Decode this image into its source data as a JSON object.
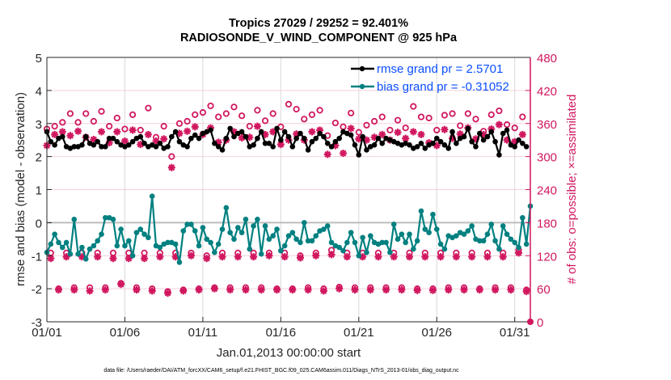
{
  "chart_data": {
    "type": "line",
    "title_line1": "Tropics 27029 / 29252 = 92.401%",
    "title_line2": "RADIOSONDE_V_WIND_COMPONENT @ 925 hPa",
    "xlabel": "Jan.01,2013 00:00:00 start",
    "ylabel": "rmse and bias (model - observation)",
    "ylabel_right": "# of obs: o=possible; ×=assimilated",
    "footnote": "data file: /Users/raeder/DAI/ATM_forcXX/CAM6_setup/f.e21.FHIST_BGC.f09_025.CAM6assim.011/Diags_NTrS_2013-01/obs_diag_output.nc",
    "xlim_days": [
      0,
      31
    ],
    "ylim": [
      -3,
      5
    ],
    "ylim_right": [
      0,
      480
    ],
    "x_ticks": [
      {
        "day": 0,
        "label": "01/01"
      },
      {
        "day": 5,
        "label": "01/06"
      },
      {
        "day": 10,
        "label": "01/11"
      },
      {
        "day": 15,
        "label": "01/16"
      },
      {
        "day": 20,
        "label": "01/21"
      },
      {
        "day": 25,
        "label": "01/26"
      },
      {
        "day": 30,
        "label": "01/31"
      }
    ],
    "y_ticks": [
      5,
      4,
      3,
      2,
      1,
      0,
      -1,
      -2,
      -3
    ],
    "y_ticks_right": [
      480,
      420,
      360,
      300,
      240,
      180,
      120,
      60,
      0
    ],
    "grid": true,
    "zero_line": 0,
    "legend_position": "top-right",
    "colors": {
      "rmse": "#000000",
      "bias": "#008080",
      "obs": "#d1175f",
      "legend_text": "#0a4fff",
      "zero_line": "#bdbdbd"
    },
    "time_step_days": 0.25,
    "series": [
      {
        "name": "rmse grand pr = 2.5701",
        "key": "rmse",
        "values": [
          2.75,
          2.45,
          2.35,
          2.55,
          2.6,
          2.3,
          2.25,
          2.3,
          2.3,
          2.35,
          2.6,
          2.4,
          2.35,
          2.45,
          2.3,
          2.3,
          2.55,
          2.55,
          2.45,
          2.35,
          2.3,
          2.35,
          2.45,
          2.55,
          2.6,
          2.4,
          2.3,
          2.35,
          2.3,
          2.4,
          2.25,
          2.3,
          2.6,
          2.75,
          2.45,
          2.35,
          2.3,
          2.55,
          2.65,
          2.55,
          2.7,
          2.75,
          2.8,
          2.4,
          2.3,
          2.2,
          2.55,
          2.85,
          2.6,
          2.7,
          2.75,
          2.6,
          2.3,
          2.35,
          2.55,
          2.75,
          2.4,
          2.4,
          2.3,
          2.85,
          2.5,
          2.75,
          2.6,
          2.3,
          2.55,
          2.7,
          2.55,
          2.2,
          2.45,
          2.55,
          2.7,
          2.6,
          2.4,
          2.3,
          2.45,
          2.55,
          2.75,
          2.7,
          2.65,
          2.35,
          2.05,
          2.6,
          2.2,
          2.3,
          2.35,
          2.55,
          2.4,
          2.55,
          2.5,
          2.45,
          2.4,
          2.35,
          2.4,
          2.35,
          2.25,
          2.3,
          2.4,
          2.25,
          2.35,
          2.4,
          2.55,
          2.45,
          2.35,
          2.25,
          2.75,
          2.4,
          2.55,
          2.6,
          2.85,
          2.45,
          2.3,
          2.7,
          2.5,
          2.6,
          2.75,
          2.45,
          2.05,
          2.7,
          2.8,
          2.35,
          2.3,
          2.5,
          2.4,
          2.3
        ]
      },
      {
        "name": "bias grand pr = -0.31052",
        "key": "bias",
        "values": [
          -0.9,
          -0.65,
          -0.35,
          -0.6,
          -0.75,
          -0.6,
          -0.95,
          0.1,
          -0.95,
          -0.75,
          -1.1,
          -0.8,
          -0.7,
          -0.55,
          -0.35,
          0.15,
          0.15,
          0.1,
          -0.7,
          -0.2,
          -0.7,
          -0.55,
          -1.0,
          -0.3,
          -0.2,
          -0.35,
          -0.45,
          0.8,
          -0.7,
          -0.75,
          -0.65,
          -0.6,
          -0.6,
          -0.65,
          -1.2,
          -0.25,
          -0.05,
          -0.05,
          -0.25,
          -0.7,
          -0.15,
          -0.5,
          -0.6,
          -0.9,
          -0.65,
          -0.2,
          0.45,
          -0.3,
          -0.5,
          -0.15,
          -0.3,
          0.1,
          -0.8,
          -0.1,
          0.1,
          -0.95,
          -0.1,
          -0.5,
          -0.4,
          -0.2,
          -0.85,
          -0.7,
          -0.4,
          -0.3,
          -0.5,
          -0.6,
          0.0,
          -0.55,
          -0.55,
          -0.4,
          -0.25,
          -0.2,
          -0.1,
          -0.6,
          -0.7,
          -0.75,
          -0.85,
          -0.6,
          -0.3,
          -0.6,
          -1.0,
          -0.45,
          -0.9,
          -0.4,
          -0.6,
          -0.65,
          -0.6,
          -0.6,
          -0.9,
          -0.05,
          -0.5,
          -0.35,
          -0.6,
          -0.35,
          -0.8,
          -0.55,
          0.35,
          -0.2,
          -0.3,
          0.25,
          -0.2,
          -0.65,
          -0.8,
          -0.4,
          -0.45,
          -0.4,
          -0.3,
          -0.35,
          -0.25,
          -0.1,
          -0.5,
          -0.55,
          -0.55,
          -0.35,
          -0.05,
          -0.55,
          -0.8,
          -0.1,
          -0.35,
          -0.5,
          -0.6,
          -0.75,
          0.15,
          -0.65,
          0.5
        ]
      },
      {
        "name": "possible obs count (o)",
        "key": "obs_possible",
        "pattern": "00Z and 12Z high, 06Z mid, 18Z low",
        "values": [
          350,
          125,
          355,
          60,
          362,
          125,
          378,
          62,
          362,
          125,
          378,
          62,
          364,
          125,
          382,
          62,
          355,
          125,
          370,
          70,
          350,
          125,
          376,
          62,
          348,
          125,
          388,
          60,
          335,
          125,
          355,
          55,
          300,
          125,
          360,
          58,
          364,
          125,
          376,
          60,
          380,
          120,
          392,
          62,
          372,
          125,
          378,
          62,
          390,
          125,
          374,
          62,
          355,
          125,
          384,
          62,
          365,
          125,
          378,
          60,
          354,
          125,
          395,
          60,
          386,
          120,
          368,
          62,
          376,
          125,
          384,
          60,
          338,
          130,
          361,
          63,
          354,
          125,
          379,
          62,
          344,
          125,
          357,
          62,
          364,
          125,
          372,
          62,
          348,
          125,
          366,
          62,
          352,
          125,
          391,
          60,
          372,
          125,
          370,
          60,
          348,
          125,
          375,
          62,
          378,
          125,
          356,
          62,
          378,
          125,
          368,
          60,
          346,
          125,
          376,
          62,
          383,
          125,
          358,
          62,
          352,
          130,
          372,
          58
        ]
      },
      {
        "name": "assimilated obs count (×)",
        "key": "obs_assimilated",
        "values": [
          320,
          115,
          340,
          58,
          345,
          118,
          338,
          58,
          346,
          118,
          335,
          56,
          331,
          118,
          345,
          58,
          325,
          115,
          345,
          68,
          328,
          115,
          348,
          58,
          322,
          115,
          340,
          56,
          328,
          118,
          332,
          52,
          280,
          118,
          342,
          56,
          346,
          120,
          354,
          58,
          340,
          115,
          352,
          60,
          326,
          118,
          330,
          58,
          345,
          118,
          334,
          58,
          335,
          118,
          355,
          58,
          340,
          120,
          345,
          58,
          322,
          118,
          330,
          58,
          341,
          116,
          330,
          58,
          345,
          120,
          348,
          56,
          304,
          122,
          320,
          60,
          306,
          118,
          351,
          58,
          332,
          118,
          330,
          58,
          335,
          118,
          340,
          58,
          330,
          118,
          344,
          58,
          333,
          118,
          345,
          57,
          340,
          118,
          325,
          57,
          320,
          118,
          349,
          58,
          333,
          118,
          341,
          58,
          352,
          118,
          332,
          58,
          340,
          118,
          350,
          58,
          358,
          118,
          330,
          58,
          327,
          125,
          340,
          55
        ]
      }
    ]
  }
}
